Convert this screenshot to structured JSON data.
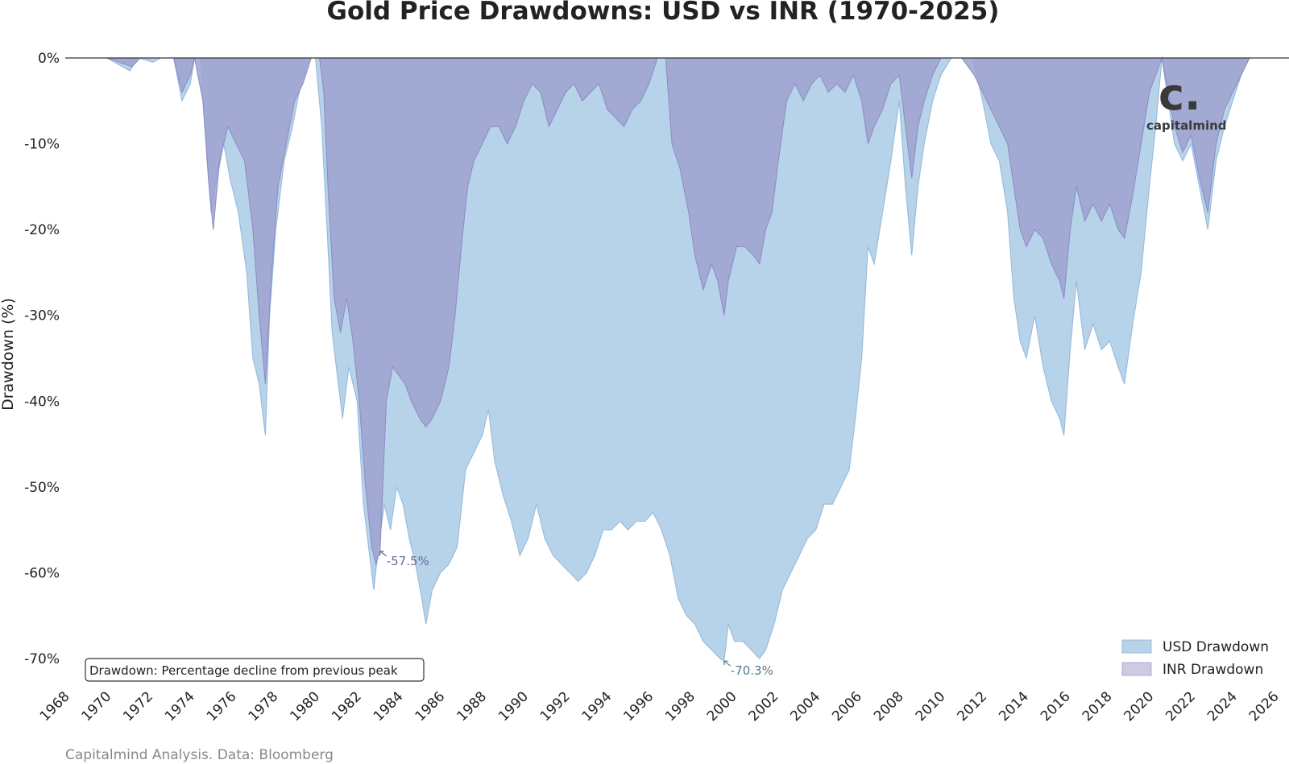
{
  "chart_data": {
    "type": "area",
    "title": "Gold Price Drawdowns: USD vs INR (1970-2025)",
    "ylabel": "Drawdown (%)",
    "xlabel": "",
    "xlim": [
      1968,
      2026
    ],
    "ylim": [
      -73,
      0
    ],
    "x_ticks": [
      "1968",
      "1970",
      "1972",
      "1974",
      "1976",
      "1978",
      "1980",
      "1982",
      "1984",
      "1986",
      "1988",
      "1990",
      "1992",
      "1994",
      "1996",
      "1998",
      "2000",
      "2002",
      "2004",
      "2006",
      "2008",
      "2010",
      "2012",
      "2014",
      "2016",
      "2018",
      "2020",
      "2022",
      "2024",
      "2026"
    ],
    "y_ticks": [
      "0%",
      "-10%",
      "-20%",
      "-30%",
      "-40%",
      "-50%",
      "-60%",
      "-70%"
    ],
    "y_tick_values": [
      0,
      -10,
      -20,
      -30,
      -40,
      -50,
      -60,
      -70
    ],
    "grid": false,
    "legend_position": "bottom-right",
    "series": [
      {
        "name": "USD Drawdown",
        "color": "#b7d3ea",
        "line_color": "#8fb5d8",
        "points": [
          [
            1970,
            0
          ],
          [
            1971.1,
            -1.5
          ],
          [
            1971.5,
            0
          ],
          [
            1972.2,
            -0.5
          ],
          [
            1972.6,
            0
          ],
          [
            1973.2,
            0
          ],
          [
            1973.6,
            -5
          ],
          [
            1974.0,
            -3
          ],
          [
            1974.2,
            0
          ],
          [
            1974.5,
            0
          ],
          [
            1974.8,
            -12
          ],
          [
            1975.0,
            -18
          ],
          [
            1975.2,
            -15
          ],
          [
            1975.6,
            -10
          ],
          [
            1975.9,
            -14
          ],
          [
            1976.3,
            -18
          ],
          [
            1976.7,
            -25
          ],
          [
            1977.0,
            -35
          ],
          [
            1977.3,
            -38
          ],
          [
            1977.6,
            -44
          ],
          [
            1977.8,
            -30
          ],
          [
            1978.1,
            -20
          ],
          [
            1978.5,
            -12
          ],
          [
            1978.9,
            -8
          ],
          [
            1979.3,
            -3
          ],
          [
            1979.7,
            0
          ],
          [
            1980.0,
            0
          ],
          [
            1980.3,
            -8
          ],
          [
            1980.6,
            -22
          ],
          [
            1980.8,
            -32
          ],
          [
            1981.0,
            -36
          ],
          [
            1981.3,
            -42
          ],
          [
            1981.6,
            -36
          ],
          [
            1982.0,
            -40
          ],
          [
            1982.3,
            -52
          ],
          [
            1982.6,
            -58
          ],
          [
            1982.8,
            -62
          ],
          [
            1983.0,
            -57.5
          ],
          [
            1983.3,
            -52
          ],
          [
            1983.6,
            -55
          ],
          [
            1983.9,
            -50
          ],
          [
            1984.2,
            -52
          ],
          [
            1984.5,
            -56
          ],
          [
            1984.8,
            -59
          ],
          [
            1985.1,
            -63
          ],
          [
            1985.3,
            -66
          ],
          [
            1985.6,
            -62
          ],
          [
            1986.0,
            -60
          ],
          [
            1986.4,
            -59
          ],
          [
            1986.8,
            -57
          ],
          [
            1987.2,
            -48
          ],
          [
            1987.6,
            -46
          ],
          [
            1988.0,
            -44
          ],
          [
            1988.3,
            -41
          ],
          [
            1988.6,
            -47
          ],
          [
            1989.0,
            -51
          ],
          [
            1989.4,
            -54
          ],
          [
            1989.8,
            -58
          ],
          [
            1990.2,
            -56
          ],
          [
            1990.6,
            -52
          ],
          [
            1991.0,
            -56
          ],
          [
            1991.4,
            -58
          ],
          [
            1991.8,
            -59
          ],
          [
            1992.2,
            -60
          ],
          [
            1992.6,
            -61
          ],
          [
            1993.0,
            -60
          ],
          [
            1993.4,
            -58
          ],
          [
            1993.8,
            -55
          ],
          [
            1994.2,
            -55
          ],
          [
            1994.6,
            -54
          ],
          [
            1995.0,
            -55
          ],
          [
            1995.4,
            -54
          ],
          [
            1995.8,
            -54
          ],
          [
            1996.2,
            -53
          ],
          [
            1996.6,
            -55
          ],
          [
            1997.0,
            -58
          ],
          [
            1997.4,
            -63
          ],
          [
            1997.8,
            -65
          ],
          [
            1998.2,
            -66
          ],
          [
            1998.6,
            -68
          ],
          [
            1999.0,
            -69
          ],
          [
            1999.4,
            -70
          ],
          [
            1999.6,
            -70.3
          ],
          [
            1999.8,
            -66
          ],
          [
            2000.1,
            -68
          ],
          [
            2000.5,
            -68
          ],
          [
            2000.9,
            -69
          ],
          [
            2001.3,
            -70
          ],
          [
            2001.6,
            -69
          ],
          [
            2002.0,
            -66
          ],
          [
            2002.4,
            -62
          ],
          [
            2002.8,
            -60
          ],
          [
            2003.2,
            -58
          ],
          [
            2003.6,
            -56
          ],
          [
            2004.0,
            -55
          ],
          [
            2004.4,
            -52
          ],
          [
            2004.8,
            -52
          ],
          [
            2005.2,
            -50
          ],
          [
            2005.6,
            -48
          ],
          [
            2005.9,
            -42
          ],
          [
            2006.2,
            -35
          ],
          [
            2006.5,
            -22
          ],
          [
            2006.8,
            -24
          ],
          [
            2007.2,
            -18
          ],
          [
            2007.6,
            -12
          ],
          [
            2008.0,
            -5
          ],
          [
            2008.3,
            -15
          ],
          [
            2008.6,
            -23
          ],
          [
            2008.9,
            -15
          ],
          [
            2009.2,
            -10
          ],
          [
            2009.6,
            -5
          ],
          [
            2010.0,
            -2
          ],
          [
            2010.5,
            0
          ],
          [
            2011.0,
            0
          ],
          [
            2011.5,
            0
          ],
          [
            2012.0,
            -5
          ],
          [
            2012.4,
            -10
          ],
          [
            2012.8,
            -12
          ],
          [
            2013.2,
            -18
          ],
          [
            2013.5,
            -28
          ],
          [
            2013.8,
            -33
          ],
          [
            2014.1,
            -35
          ],
          [
            2014.5,
            -30
          ],
          [
            2014.9,
            -36
          ],
          [
            2015.3,
            -40
          ],
          [
            2015.7,
            -42
          ],
          [
            2015.9,
            -44
          ],
          [
            2016.2,
            -34
          ],
          [
            2016.5,
            -26
          ],
          [
            2016.9,
            -34
          ],
          [
            2017.3,
            -31
          ],
          [
            2017.7,
            -34
          ],
          [
            2018.1,
            -33
          ],
          [
            2018.5,
            -36
          ],
          [
            2018.8,
            -38
          ],
          [
            2019.2,
            -31
          ],
          [
            2019.6,
            -25
          ],
          [
            2020.0,
            -15
          ],
          [
            2020.3,
            -8
          ],
          [
            2020.6,
            0
          ],
          [
            2020.9,
            -5
          ],
          [
            2021.2,
            -10
          ],
          [
            2021.6,
            -12
          ],
          [
            2022.0,
            -10
          ],
          [
            2022.4,
            -15
          ],
          [
            2022.8,
            -20
          ],
          [
            2023.2,
            -12
          ],
          [
            2023.6,
            -8
          ],
          [
            2024.0,
            -5
          ],
          [
            2024.4,
            -2
          ],
          [
            2024.8,
            0
          ],
          [
            2025.3,
            0
          ]
        ]
      },
      {
        "name": "INR Drawdown",
        "color": "#9fa2d0",
        "line_color": "#8a88c2",
        "points": [
          [
            1970,
            0
          ],
          [
            1971.2,
            -1
          ],
          [
            1971.6,
            0
          ],
          [
            1972.5,
            0
          ],
          [
            1973.2,
            0
          ],
          [
            1973.6,
            -4
          ],
          [
            1974.0,
            -2
          ],
          [
            1974.2,
            0
          ],
          [
            1974.6,
            -5
          ],
          [
            1974.9,
            -15
          ],
          [
            1975.1,
            -20
          ],
          [
            1975.4,
            -12
          ],
          [
            1975.8,
            -8
          ],
          [
            1976.2,
            -10
          ],
          [
            1976.6,
            -12
          ],
          [
            1977.0,
            -20
          ],
          [
            1977.3,
            -30
          ],
          [
            1977.6,
            -38
          ],
          [
            1977.9,
            -25
          ],
          [
            1978.2,
            -15
          ],
          [
            1978.6,
            -10
          ],
          [
            1979.0,
            -5
          ],
          [
            1979.4,
            -3
          ],
          [
            1979.8,
            0
          ],
          [
            1980.2,
            0
          ],
          [
            1980.4,
            -4
          ],
          [
            1980.6,
            -15
          ],
          [
            1980.9,
            -28
          ],
          [
            1981.2,
            -32
          ],
          [
            1981.5,
            -28
          ],
          [
            1981.8,
            -33
          ],
          [
            1982.1,
            -40
          ],
          [
            1982.4,
            -50
          ],
          [
            1982.7,
            -57
          ],
          [
            1982.9,
            -59
          ],
          [
            1983.1,
            -57.5
          ],
          [
            1983.4,
            -40
          ],
          [
            1983.7,
            -36
          ],
          [
            1984.0,
            -37
          ],
          [
            1984.3,
            -38
          ],
          [
            1984.6,
            -40
          ],
          [
            1985.0,
            -42
          ],
          [
            1985.3,
            -43
          ],
          [
            1985.6,
            -42
          ],
          [
            1986.0,
            -40
          ],
          [
            1986.4,
            -36
          ],
          [
            1986.7,
            -30
          ],
          [
            1987.0,
            -22
          ],
          [
            1987.3,
            -15
          ],
          [
            1987.6,
            -12
          ],
          [
            1988.0,
            -10
          ],
          [
            1988.4,
            -8
          ],
          [
            1988.8,
            -8
          ],
          [
            1989.2,
            -10
          ],
          [
            1989.6,
            -8
          ],
          [
            1990.0,
            -5
          ],
          [
            1990.4,
            -3
          ],
          [
            1990.8,
            -4
          ],
          [
            1991.2,
            -8
          ],
          [
            1991.6,
            -6
          ],
          [
            1992.0,
            -4
          ],
          [
            1992.4,
            -3
          ],
          [
            1992.8,
            -5
          ],
          [
            1993.2,
            -4
          ],
          [
            1993.6,
            -3
          ],
          [
            1994.0,
            -6
          ],
          [
            1994.4,
            -7
          ],
          [
            1994.8,
            -8
          ],
          [
            1995.2,
            -6
          ],
          [
            1995.6,
            -5
          ],
          [
            1996.0,
            -3
          ],
          [
            1996.4,
            0
          ],
          [
            1996.8,
            0
          ],
          [
            1997.1,
            -10
          ],
          [
            1997.5,
            -13
          ],
          [
            1997.9,
            -18
          ],
          [
            1998.2,
            -23
          ],
          [
            1998.6,
            -27
          ],
          [
            1999.0,
            -24
          ],
          [
            1999.3,
            -26
          ],
          [
            1999.6,
            -30
          ],
          [
            1999.8,
            -26
          ],
          [
            2000.2,
            -22
          ],
          [
            2000.6,
            -22
          ],
          [
            2001.0,
            -23
          ],
          [
            2001.3,
            -24
          ],
          [
            2001.6,
            -20
          ],
          [
            2001.9,
            -18
          ],
          [
            2002.2,
            -12
          ],
          [
            2002.6,
            -5
          ],
          [
            2003.0,
            -3
          ],
          [
            2003.4,
            -5
          ],
          [
            2003.8,
            -3
          ],
          [
            2004.2,
            -2
          ],
          [
            2004.6,
            -4
          ],
          [
            2005.0,
            -3
          ],
          [
            2005.4,
            -4
          ],
          [
            2005.8,
            -2
          ],
          [
            2006.2,
            -5
          ],
          [
            2006.5,
            -10
          ],
          [
            2006.8,
            -8
          ],
          [
            2007.2,
            -6
          ],
          [
            2007.6,
            -3
          ],
          [
            2008.0,
            -2
          ],
          [
            2008.3,
            -8
          ],
          [
            2008.6,
            -14
          ],
          [
            2008.9,
            -8
          ],
          [
            2009.2,
            -5
          ],
          [
            2009.6,
            -2
          ],
          [
            2010.0,
            0
          ],
          [
            2011.0,
            0
          ],
          [
            2011.6,
            -2
          ],
          [
            2012.0,
            -4
          ],
          [
            2012.4,
            -6
          ],
          [
            2012.8,
            -8
          ],
          [
            2013.2,
            -10
          ],
          [
            2013.5,
            -15
          ],
          [
            2013.8,
            -20
          ],
          [
            2014.1,
            -22
          ],
          [
            2014.5,
            -20
          ],
          [
            2014.9,
            -21
          ],
          [
            2015.3,
            -24
          ],
          [
            2015.7,
            -26
          ],
          [
            2015.9,
            -28
          ],
          [
            2016.2,
            -20
          ],
          [
            2016.5,
            -15
          ],
          [
            2016.9,
            -19
          ],
          [
            2017.3,
            -17
          ],
          [
            2017.7,
            -19
          ],
          [
            2018.1,
            -17
          ],
          [
            2018.5,
            -20
          ],
          [
            2018.8,
            -21
          ],
          [
            2019.2,
            -16
          ],
          [
            2019.6,
            -10
          ],
          [
            2020.0,
            -4
          ],
          [
            2020.3,
            -2
          ],
          [
            2020.6,
            0
          ],
          [
            2020.9,
            -4
          ],
          [
            2021.2,
            -8
          ],
          [
            2021.6,
            -11
          ],
          [
            2022.0,
            -9
          ],
          [
            2022.4,
            -14
          ],
          [
            2022.8,
            -18
          ],
          [
            2023.2,
            -10
          ],
          [
            2023.6,
            -6
          ],
          [
            2024.0,
            -4
          ],
          [
            2024.4,
            -2
          ],
          [
            2024.8,
            0
          ],
          [
            2025.3,
            0
          ]
        ]
      }
    ],
    "annotations": [
      {
        "text": "-57.5%",
        "x": 1983.1,
        "y": -57.5,
        "color": "#6a6a9a"
      },
      {
        "text": "-70.3%",
        "x": 1999.6,
        "y": -70.3,
        "color": "#4e7d8e"
      }
    ],
    "note": "Drawdown: Percentage decline from previous peak",
    "source": "Capitalmind Analysis. Data: Bloomberg"
  },
  "logo": {
    "text": "capitalmind",
    "glyph": "c.",
    "icon": "capitalmind-logo"
  }
}
